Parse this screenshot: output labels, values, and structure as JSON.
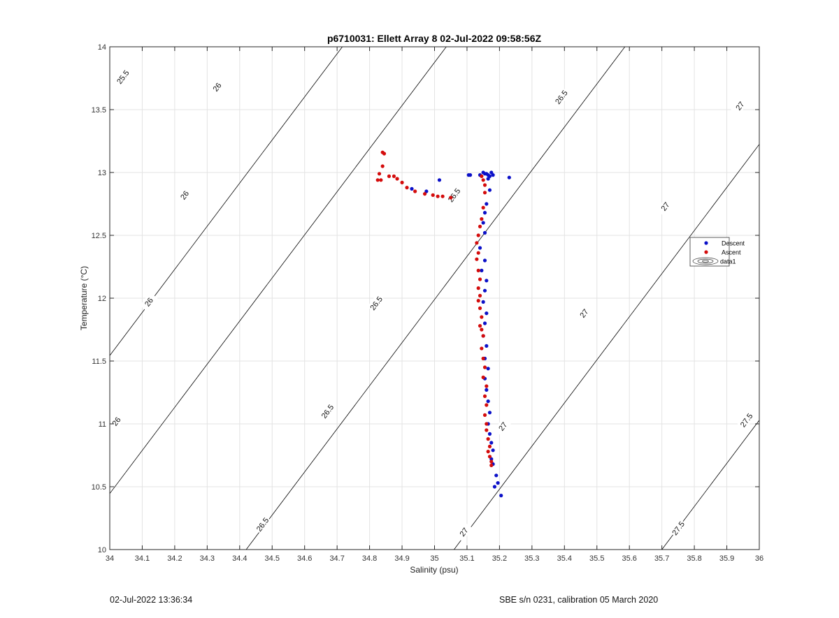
{
  "footer": {
    "timestamp": "02-Jul-2022 13:36:34",
    "sensor_info": "SBE s/n 0231, calibration 05 March 2020"
  },
  "chart_data": {
    "type": "scatter",
    "title": "p6710031: Ellett Array 8 02-Jul-2022 09:58:56Z",
    "xlabel": "Salinity (psu)",
    "ylabel": "Temperature (°C)",
    "xlim": [
      34,
      36
    ],
    "ylim": [
      10,
      14
    ],
    "xticks": [
      "34",
      "34.1",
      "34.2",
      "34.3",
      "34.4",
      "34.5",
      "34.6",
      "34.7",
      "34.8",
      "34.9",
      "35",
      "35.1",
      "35.2",
      "35.3",
      "35.4",
      "35.5",
      "35.6",
      "35.7",
      "35.8",
      "35.9",
      "36"
    ],
    "yticks": [
      "10",
      "10.5",
      "11",
      "11.5",
      "12",
      "12.5",
      "13",
      "13.5",
      "14"
    ],
    "grid": true,
    "legend_position": "right",
    "colors": {
      "descent": "#0b10c8",
      "ascent": "#d40c0c",
      "contour": "#000000",
      "grid": "#e3e3e3"
    },
    "density_contours": [
      {
        "level": "25.5",
        "salinity_at_10C": 33.55
      },
      {
        "level": "26",
        "salinity_at_10C": 33.87
      },
      {
        "level": "26.5",
        "salinity_at_10C": 34.42
      },
      {
        "level": "27",
        "salinity_at_10C": 35.06
      },
      {
        "level": "27.5",
        "salinity_at_10C": 35.7
      }
    ],
    "contour_slope_degC_per_psu": 3.43,
    "contour_labels": [
      {
        "text": "25.5",
        "s": 34.04,
        "t": 13.76
      },
      {
        "text": "26",
        "s": 34.33,
        "t": 13.68
      },
      {
        "text": "26",
        "s": 34.23,
        "t": 12.82
      },
      {
        "text": "26",
        "s": 34.12,
        "t": 11.97
      },
      {
        "text": "26",
        "s": 34.02,
        "t": 11.02
      },
      {
        "text": "26.5",
        "s": 35.39,
        "t": 13.6
      },
      {
        "text": "26.5",
        "s": 35.06,
        "t": 12.82
      },
      {
        "text": "26.5",
        "s": 34.82,
        "t": 11.96
      },
      {
        "text": "26.5",
        "s": 34.67,
        "t": 11.1
      },
      {
        "text": "26.5",
        "s": 34.47,
        "t": 10.2
      },
      {
        "text": "27",
        "s": 35.94,
        "t": 13.53
      },
      {
        "text": "27",
        "s": 35.71,
        "t": 12.73
      },
      {
        "text": "27",
        "s": 35.46,
        "t": 11.88
      },
      {
        "text": "27",
        "s": 35.21,
        "t": 10.98
      },
      {
        "text": "27",
        "s": 35.09,
        "t": 10.14
      },
      {
        "text": "27.5",
        "s": 35.96,
        "t": 11.03
      },
      {
        "text": "27.5",
        "s": 35.75,
        "t": 10.17
      }
    ],
    "series": [
      {
        "name": "Descent",
        "marker": "filled-dot",
        "points": [
          [
            35.015,
            12.94
          ],
          [
            34.975,
            12.85
          ],
          [
            34.93,
            12.87
          ],
          [
            35.105,
            12.98
          ],
          [
            35.11,
            12.98
          ],
          [
            35.14,
            12.98
          ],
          [
            35.15,
            13.0
          ],
          [
            35.155,
            12.99
          ],
          [
            35.16,
            12.99
          ],
          [
            35.165,
            12.98
          ],
          [
            35.17,
            12.97
          ],
          [
            35.175,
            13.0
          ],
          [
            35.18,
            12.98
          ],
          [
            35.165,
            12.95
          ],
          [
            35.23,
            12.96
          ],
          [
            35.17,
            12.86
          ],
          [
            35.16,
            12.75
          ],
          [
            35.155,
            12.68
          ],
          [
            35.15,
            12.6
          ],
          [
            35.155,
            12.52
          ],
          [
            35.14,
            12.4
          ],
          [
            35.155,
            12.3
          ],
          [
            35.145,
            12.22
          ],
          [
            35.16,
            12.14
          ],
          [
            35.155,
            12.06
          ],
          [
            35.15,
            11.97
          ],
          [
            35.16,
            11.88
          ],
          [
            35.155,
            11.8
          ],
          [
            35.15,
            11.7
          ],
          [
            35.16,
            11.62
          ],
          [
            35.155,
            11.52
          ],
          [
            35.165,
            11.44
          ],
          [
            35.155,
            11.36
          ],
          [
            35.16,
            11.27
          ],
          [
            35.165,
            11.18
          ],
          [
            35.17,
            11.09
          ],
          [
            35.165,
            11.0
          ],
          [
            35.17,
            10.92
          ],
          [
            35.175,
            10.85
          ],
          [
            35.18,
            10.79
          ],
          [
            35.175,
            10.72
          ],
          [
            35.18,
            10.68
          ],
          [
            35.19,
            10.59
          ],
          [
            35.195,
            10.53
          ],
          [
            35.185,
            10.5
          ],
          [
            35.205,
            10.43
          ]
        ]
      },
      {
        "name": "Ascent",
        "marker": "filled-dot",
        "points": [
          [
            34.84,
            13.16
          ],
          [
            34.845,
            13.15
          ],
          [
            34.84,
            13.05
          ],
          [
            34.83,
            12.99
          ],
          [
            34.825,
            12.94
          ],
          [
            34.835,
            12.94
          ],
          [
            34.86,
            12.97
          ],
          [
            34.875,
            12.97
          ],
          [
            34.885,
            12.95
          ],
          [
            34.9,
            12.92
          ],
          [
            34.915,
            12.88
          ],
          [
            34.94,
            12.85
          ],
          [
            34.97,
            12.83
          ],
          [
            34.995,
            12.82
          ],
          [
            35.01,
            12.81
          ],
          [
            35.025,
            12.81
          ],
          [
            35.05,
            12.8
          ],
          [
            35.145,
            12.97
          ],
          [
            35.15,
            12.94
          ],
          [
            35.155,
            12.9
          ],
          [
            35.155,
            12.84
          ],
          [
            35.15,
            12.72
          ],
          [
            35.145,
            12.63
          ],
          [
            35.14,
            12.57
          ],
          [
            35.135,
            12.5
          ],
          [
            35.13,
            12.44
          ],
          [
            35.135,
            12.36
          ],
          [
            35.13,
            12.31
          ],
          [
            35.135,
            12.22
          ],
          [
            35.14,
            12.15
          ],
          [
            35.135,
            12.08
          ],
          [
            35.14,
            12.02
          ],
          [
            35.135,
            11.98
          ],
          [
            35.14,
            11.92
          ],
          [
            35.145,
            11.85
          ],
          [
            35.14,
            11.78
          ],
          [
            35.145,
            11.75
          ],
          [
            35.15,
            11.7
          ],
          [
            35.145,
            11.6
          ],
          [
            35.15,
            11.52
          ],
          [
            35.155,
            11.45
          ],
          [
            35.15,
            11.37
          ],
          [
            35.16,
            11.3
          ],
          [
            35.155,
            11.22
          ],
          [
            35.16,
            11.15
          ],
          [
            35.155,
            11.07
          ],
          [
            35.16,
            11.0
          ],
          [
            35.16,
            10.95
          ],
          [
            35.165,
            10.88
          ],
          [
            35.17,
            10.82
          ],
          [
            35.165,
            10.78
          ],
          [
            35.17,
            10.74
          ],
          [
            35.175,
            10.7
          ],
          [
            35.175,
            10.67
          ]
        ]
      }
    ],
    "legend": [
      "Descent",
      "Ascent",
      "data1"
    ]
  }
}
